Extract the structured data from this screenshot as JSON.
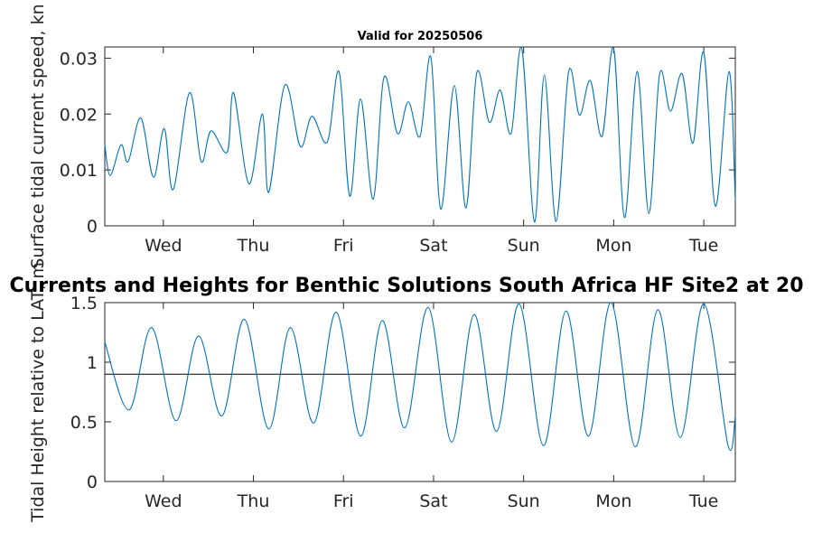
{
  "figure_title": "Currents and Heights for Benthic Solutions South Africa HF Site2 at 20",
  "chart_data": [
    {
      "type": "line",
      "title": "Valid for 20250506",
      "ylabel": "Surface tidal current speed, kn",
      "xlabel": "",
      "xlim": [
        0,
        7
      ],
      "ylim": [
        0,
        0.032
      ],
      "yticks": [
        0,
        0.01,
        0.02,
        0.03
      ],
      "ytick_labels": [
        "0",
        "0.01",
        "0.02",
        "0.03"
      ],
      "xticks": [
        0.65,
        1.65,
        2.65,
        3.65,
        4.65,
        5.65,
        6.65
      ],
      "xtick_labels": [
        "Wed",
        "Thu",
        "Fri",
        "Sat",
        "Sun",
        "Mon",
        "Tue"
      ],
      "grid": false,
      "series": [
        {
          "color": "#0072BD",
          "x": [
            0,
            0.06,
            0.18,
            0.26,
            0.4,
            0.54,
            0.66,
            0.76,
            0.94,
            1.07,
            1.18,
            1.36,
            1.43,
            1.6,
            1.75,
            1.82,
            2.0,
            2.17,
            2.3,
            2.47,
            2.6,
            2.72,
            2.84,
            2.98,
            3.1,
            3.25,
            3.37,
            3.5,
            3.62,
            3.73,
            3.88,
            4.01,
            4.13,
            4.27,
            4.39,
            4.51,
            4.63,
            4.77,
            4.88,
            5.01,
            5.15,
            5.27,
            5.39,
            5.52,
            5.65,
            5.77,
            5.91,
            6.04,
            6.16,
            6.28,
            6.41,
            6.53,
            6.65,
            6.78,
            6.93,
            7.0
          ],
          "y": [
            0.0145,
            0.009,
            0.0145,
            0.0115,
            0.0193,
            0.0087,
            0.0174,
            0.0065,
            0.0238,
            0.0115,
            0.017,
            0.0132,
            0.0238,
            0.0075,
            0.02,
            0.006,
            0.0252,
            0.0142,
            0.0196,
            0.015,
            0.0276,
            0.0053,
            0.0227,
            0.0048,
            0.0266,
            0.0165,
            0.0222,
            0.016,
            0.0302,
            0.003,
            0.0251,
            0.0032,
            0.0274,
            0.0185,
            0.0243,
            0.0165,
            0.0317,
            0.0007,
            0.027,
            0.0008,
            0.0276,
            0.0198,
            0.026,
            0.016,
            0.0317,
            0.0015,
            0.0276,
            0.0022,
            0.0272,
            0.0205,
            0.0272,
            0.0148,
            0.031,
            0.0035,
            0.0276,
            0.0045
          ]
        }
      ]
    },
    {
      "type": "line",
      "title": "",
      "ylabel": "Tidal Height relative to LAT, m",
      "xlabel": "",
      "xlim": [
        0,
        7
      ],
      "ylim": [
        0,
        1.5
      ],
      "yticks": [
        0,
        0.5,
        1,
        1.5
      ],
      "ytick_labels": [
        "0",
        "0.5",
        "1",
        "1.5"
      ],
      "xticks": [
        0.65,
        1.65,
        2.65,
        3.65,
        4.65,
        5.65,
        6.65
      ],
      "xtick_labels": [
        "Wed",
        "Thu",
        "Fri",
        "Sat",
        "Sun",
        "Mon",
        "Tue"
      ],
      "grid": false,
      "reference_line": {
        "y": 0.9,
        "color": "#000000"
      },
      "series": [
        {
          "color": "#0072BD",
          "x": [
            0,
            0.27,
            0.52,
            0.79,
            1.04,
            1.3,
            1.55,
            1.82,
            2.06,
            2.32,
            2.57,
            2.84,
            3.08,
            3.33,
            3.59,
            3.85,
            4.1,
            4.35,
            4.6,
            4.87,
            5.12,
            5.37,
            5.62,
            5.89,
            6.14,
            6.39,
            6.65,
            6.92,
            7.0
          ],
          "y": [
            1.17,
            0.6,
            1.29,
            0.51,
            1.22,
            0.55,
            1.36,
            0.44,
            1.29,
            0.49,
            1.42,
            0.38,
            1.35,
            0.45,
            1.46,
            0.33,
            1.4,
            0.42,
            1.49,
            0.3,
            1.43,
            0.38,
            1.5,
            0.29,
            1.44,
            0.37,
            1.49,
            0.3,
            0.55
          ]
        }
      ]
    }
  ]
}
